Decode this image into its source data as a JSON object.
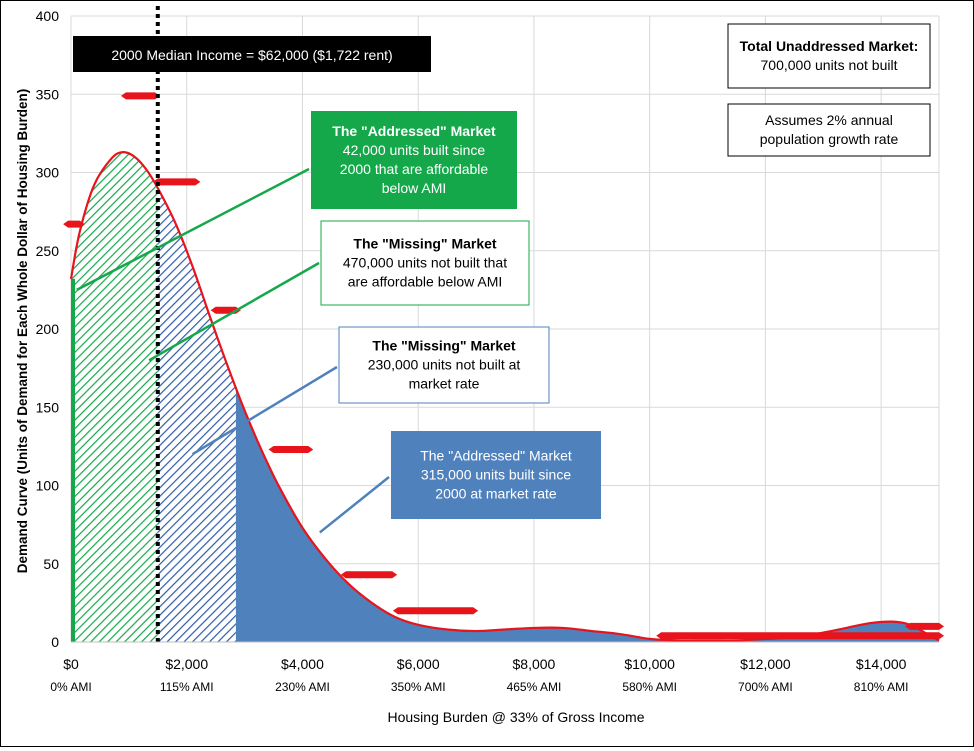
{
  "colors": {
    "curve": "#e8141b",
    "addressed_affordable": "#14a84a",
    "missing_affordable": "#2f5ba8",
    "market_fill": "#4f81bd",
    "median_line": "#000000",
    "grid": "#d9d9d9"
  },
  "chart_data": {
    "type": "area",
    "xlabel": "Housing Burden @ 33% of Gross Income",
    "ylabel": "Demand Curve (Units of Demand for Each Whole Dollar of Housing Burden)",
    "xlim": [
      0,
      15000
    ],
    "ylim": [
      0,
      400
    ],
    "x_ticks": [
      {
        "value": 0,
        "label": "$0",
        "ami": "0% AMI"
      },
      {
        "value": 2000,
        "label": "$2,000",
        "ami": "115% AMI"
      },
      {
        "value": 4000,
        "label": "$4,000",
        "ami": "230% AMI"
      },
      {
        "value": 6000,
        "label": "$6,000",
        "ami": "350% AMI"
      },
      {
        "value": 8000,
        "label": "$8,000",
        "ami": "465% AMI"
      },
      {
        "value": 10000,
        "label": "$10,000",
        "ami": "580% AMI"
      },
      {
        "value": 12000,
        "label": "$12,000",
        "ami": "700% AMI"
      },
      {
        "value": 14000,
        "label": "$14,000",
        "ami": "810% AMI"
      }
    ],
    "y_ticks": [
      0,
      50,
      100,
      150,
      200,
      250,
      300,
      350,
      400
    ],
    "grid": true,
    "median_line": {
      "x": 1500,
      "label": "2000 Median Income = $62,000 ($1,722 rent)"
    },
    "curve": {
      "x": [
        0,
        150,
        400,
        700,
        900,
        1100,
        1300,
        1500,
        1800,
        2100,
        2400,
        2700,
        3000,
        3300,
        3600,
        4000,
        4400,
        4800,
        5200,
        5600,
        6000,
        6500,
        7000,
        7500,
        8000,
        8500,
        9000,
        9500,
        10000,
        10500,
        11000,
        11500,
        12000,
        12500,
        13000,
        13400,
        13800,
        14200,
        14500,
        14800,
        15000
      ],
      "y": [
        232,
        262,
        292,
        309,
        313,
        310,
        302,
        290,
        268,
        240,
        208,
        177,
        148,
        122,
        99,
        73,
        53,
        37,
        25,
        16,
        11,
        8,
        7,
        8,
        9,
        9,
        7,
        5,
        2,
        1,
        1,
        1,
        2,
        3,
        6,
        9,
        12,
        13,
        11,
        5,
        1
      ]
    },
    "regions": [
      {
        "name": "addressed-affordable",
        "x_start": 0,
        "x_end": 1500,
        "fill": "hatch-green"
      },
      {
        "name": "missing-affordable",
        "x_start": 1500,
        "x_end": 2850,
        "fill": "hatch-blue"
      },
      {
        "name": "market",
        "x_start": 2850,
        "x_end": 15000,
        "fill": "solid-blue"
      }
    ],
    "red_markers": [
      {
        "x_start": -50,
        "x_end": 150,
        "y": 267
      },
      {
        "x_start": 950,
        "x_end": 1450,
        "y": 349
      },
      {
        "x_start": 1500,
        "x_end": 2150,
        "y": 294
      },
      {
        "x_start": 2500,
        "x_end": 2850,
        "y": 212
      },
      {
        "x_start": 3500,
        "x_end": 4100,
        "y": 123
      },
      {
        "x_start": 4750,
        "x_end": 5550,
        "y": 43
      },
      {
        "x_start": 5650,
        "x_end": 6950,
        "y": 20
      },
      {
        "x_start": 10200,
        "x_end": 15000,
        "y": 4
      },
      {
        "x_start": 14500,
        "x_end": 15000,
        "y": 10
      }
    ],
    "annotations": [
      {
        "id": "addressed-affordable",
        "title": "The \"Addressed\" Market",
        "lines": [
          "42,000 units built since",
          "2000 that are affordable",
          "below AMI"
        ],
        "style": "green",
        "target": {
          "x": 100,
          "y": 225
        }
      },
      {
        "id": "missing-affordable",
        "title": "The \"Missing\" Market",
        "lines": [
          "470,000 units not built that",
          "are affordable below AMI"
        ],
        "style": "green-outline",
        "target": {
          "x": 1350,
          "y": 180
        }
      },
      {
        "id": "missing-market",
        "title": "The \"Missing\" Market",
        "lines": [
          "230,000 units not built at",
          "market rate"
        ],
        "style": "blue-outline",
        "target": {
          "x": 2100,
          "y": 120
        }
      },
      {
        "id": "addressed-market",
        "title": "The \"Addressed\" Market",
        "lines": [
          "315,000 units built since",
          "2000 at market rate"
        ],
        "style": "blue",
        "target": {
          "x": 4300,
          "y": 70
        }
      }
    ],
    "info_boxes": [
      {
        "id": "total",
        "title": "Total Unaddressed Market:",
        "lines": [
          "700,000 units not built"
        ]
      },
      {
        "id": "assumption",
        "title": "",
        "lines": [
          "Assumes 2% annual",
          "population growth rate"
        ]
      }
    ]
  }
}
